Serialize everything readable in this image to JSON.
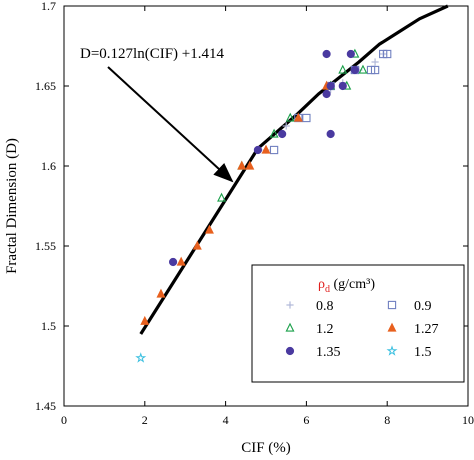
{
  "chart_data": {
    "type": "scatter",
    "xlabel": "CIF (%)",
    "ylabel": "Fractal Dimension (D)",
    "xlim": [
      0,
      10
    ],
    "ylim": [
      1.45,
      1.7
    ],
    "x_ticks": [
      0,
      2,
      4,
      6,
      8,
      10
    ],
    "y_ticks": [
      1.45,
      1.5,
      1.55,
      1.6,
      1.65,
      1.7
    ],
    "x_tick_labels": [
      "0",
      "2",
      "4",
      "6",
      "8",
      "10"
    ],
    "y_tick_labels": [
      "1.45",
      "1.5",
      "1.55",
      "1.6",
      "1.65",
      "1.7"
    ],
    "grid": false,
    "annotation": {
      "text": "D=0.127ln(CIF) +1.414",
      "arrow_target": [
        4.3,
        1.59
      ]
    },
    "legend": {
      "title_symbol": "ρ",
      "title_subscript": "d",
      "title_unit": " (g/cm³)",
      "placement": "bottom-right"
    },
    "fit_line": {
      "label": "D=0.127ln(CIF) +1.414",
      "x": [
        1.9,
        2.4,
        2.9,
        3.4,
        3.9,
        4.3,
        4.8,
        5.3,
        5.8,
        6.3,
        6.8,
        7.3,
        7.8,
        8.3,
        8.8,
        9.5
      ],
      "y": [
        1.495,
        1.515,
        1.535,
        1.555,
        1.575,
        1.591,
        1.611,
        1.622,
        1.633,
        1.645,
        1.655,
        1.665,
        1.676,
        1.684,
        1.692,
        1.7
      ]
    },
    "series": [
      {
        "name": "0.8",
        "marker": "plus",
        "color": "#b0b8d8",
        "x": [
          5.0,
          5.5,
          6.6,
          6.9,
          7.3,
          7.7,
          7.9
        ],
        "y": [
          1.61,
          1.625,
          1.648,
          1.652,
          1.66,
          1.665,
          1.67
        ]
      },
      {
        "name": "0.9",
        "marker": "square",
        "color": "#7080c0",
        "x": [
          5.2,
          5.8,
          6.0,
          6.6,
          7.2,
          7.6,
          7.7,
          7.9,
          8.0
        ],
        "y": [
          1.61,
          1.63,
          1.63,
          1.65,
          1.66,
          1.66,
          1.66,
          1.67,
          1.67
        ]
      },
      {
        "name": "1.2",
        "marker": "triangle-open",
        "color": "#1aa04a",
        "x": [
          3.9,
          4.4,
          5.2,
          5.6,
          6.6,
          6.9,
          7.2,
          7.4,
          7.0
        ],
        "y": [
          1.58,
          1.6,
          1.62,
          1.63,
          1.65,
          1.66,
          1.67,
          1.66,
          1.65
        ]
      },
      {
        "name": "1.27",
        "marker": "triangle",
        "color": "#e8601e",
        "x": [
          2.0,
          2.4,
          2.9,
          3.3,
          3.6,
          4.4,
          4.6,
          5.0,
          5.8,
          6.5
        ],
        "y": [
          1.503,
          1.52,
          1.54,
          1.55,
          1.56,
          1.6,
          1.6,
          1.61,
          1.63,
          1.65
        ]
      },
      {
        "name": "1.35",
        "marker": "circle",
        "color": "#4a3aa0",
        "x": [
          2.7,
          4.8,
          5.4,
          6.5,
          6.5,
          6.6,
          6.6,
          6.9,
          7.1,
          7.2
        ],
        "y": [
          1.54,
          1.61,
          1.62,
          1.67,
          1.645,
          1.62,
          1.65,
          1.65,
          1.67,
          1.66
        ]
      },
      {
        "name": "1.5",
        "marker": "star-open",
        "color": "#3cc0e0",
        "x": [
          1.9
        ],
        "y": [
          1.48
        ]
      }
    ]
  }
}
